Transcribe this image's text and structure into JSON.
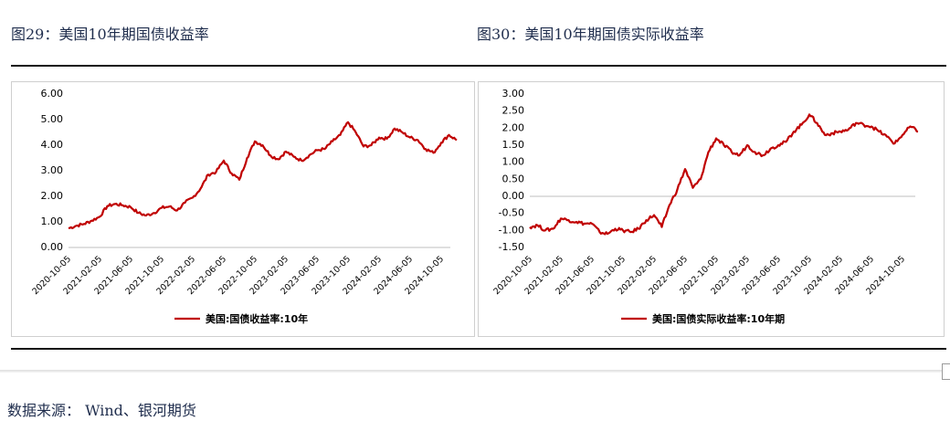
{
  "figures": {
    "left_title": "图29：美国10年期国债收益率",
    "right_title": "图30：美国10年期国债实际收益率"
  },
  "source_text": "数据来源：   Wind、银河期货",
  "chart_data": [
    {
      "type": "line",
      "title": "",
      "xlabel": "",
      "ylabel": "",
      "x_ticks": [
        "2020-10-05",
        "2021-02-05",
        "2021-06-05",
        "2021-10-05",
        "2022-02-05",
        "2022-06-05",
        "2022-10-05",
        "2023-02-05",
        "2023-06-05",
        "2023-10-05",
        "2024-02-05",
        "2024-06-05",
        "2024-10-05"
      ],
      "y_ticks": [
        "0.00",
        "1.00",
        "2.00",
        "3.00",
        "4.00",
        "5.00",
        "6.00"
      ],
      "ylim": [
        0,
        6
      ],
      "grid": false,
      "legend": "bottom-center",
      "color": "#c00000",
      "series": [
        {
          "name": "美国:国债收益率:10年",
          "x": [
            "2020-10-05",
            "2020-11-05",
            "2020-12-05",
            "2021-01-05",
            "2021-02-05",
            "2021-03-05",
            "2021-04-05",
            "2021-05-05",
            "2021-06-05",
            "2021-07-05",
            "2021-08-05",
            "2021-09-05",
            "2021-10-05",
            "2021-11-05",
            "2021-12-05",
            "2022-01-05",
            "2022-02-05",
            "2022-03-05",
            "2022-04-05",
            "2022-05-05",
            "2022-06-05",
            "2022-07-05",
            "2022-08-05",
            "2022-09-05",
            "2022-10-05",
            "2022-11-05",
            "2022-12-05",
            "2023-01-05",
            "2023-02-05",
            "2023-03-05",
            "2023-04-05",
            "2023-05-05",
            "2023-06-05",
            "2023-07-05",
            "2023-08-05",
            "2023-09-05",
            "2023-10-05",
            "2023-11-05",
            "2023-12-05",
            "2024-01-05",
            "2024-02-05",
            "2024-03-05",
            "2024-04-05",
            "2024-05-05",
            "2024-06-05",
            "2024-07-05",
            "2024-08-05",
            "2024-09-05",
            "2024-10-05",
            "2024-11-05",
            "2024-12-05"
          ],
          "values": [
            0.75,
            0.85,
            0.92,
            1.05,
            1.2,
            1.62,
            1.7,
            1.65,
            1.58,
            1.35,
            1.25,
            1.35,
            1.55,
            1.6,
            1.45,
            1.75,
            1.95,
            2.3,
            2.85,
            2.95,
            3.4,
            2.9,
            2.65,
            3.5,
            4.15,
            4.0,
            3.6,
            3.45,
            3.75,
            3.55,
            3.4,
            3.6,
            3.8,
            3.85,
            4.15,
            4.4,
            4.9,
            4.5,
            3.95,
            4.0,
            4.3,
            4.25,
            4.65,
            4.5,
            4.3,
            4.2,
            3.85,
            3.7,
            4.1,
            4.4,
            4.2
          ]
        }
      ]
    },
    {
      "type": "line",
      "title": "",
      "xlabel": "",
      "ylabel": "",
      "x_ticks": [
        "2020-10-05",
        "2021-02-05",
        "2021-06-05",
        "2021-10-05",
        "2022-02-05",
        "2022-06-05",
        "2022-10-05",
        "2023-02-05",
        "2023-06-05",
        "2023-10-05",
        "2024-02-05",
        "2024-06-05",
        "2024-10-05"
      ],
      "y_ticks": [
        "-1.50",
        "-1.00",
        "-0.50",
        "0.00",
        "0.50",
        "1.00",
        "1.50",
        "2.00",
        "2.50",
        "3.00"
      ],
      "ylim": [
        -1.5,
        3
      ],
      "grid": false,
      "legend": "bottom-center",
      "color": "#c00000",
      "series": [
        {
          "name": "美国:国债实际收益率:10年期",
          "x": [
            "2020-10-05",
            "2020-11-05",
            "2020-12-05",
            "2021-01-05",
            "2021-02-05",
            "2021-03-05",
            "2021-04-05",
            "2021-05-05",
            "2021-06-05",
            "2021-07-05",
            "2021-08-05",
            "2021-09-05",
            "2021-10-05",
            "2021-11-05",
            "2021-12-05",
            "2022-01-05",
            "2022-02-05",
            "2022-03-05",
            "2022-04-05",
            "2022-05-05",
            "2022-06-05",
            "2022-07-05",
            "2022-08-05",
            "2022-09-05",
            "2022-10-05",
            "2022-11-05",
            "2022-12-05",
            "2023-01-05",
            "2023-02-05",
            "2023-03-05",
            "2023-04-05",
            "2023-05-05",
            "2023-06-05",
            "2023-07-05",
            "2023-08-05",
            "2023-09-05",
            "2023-10-05",
            "2023-11-05",
            "2023-12-05",
            "2024-01-05",
            "2024-02-05",
            "2024-03-05",
            "2024-04-05",
            "2024-05-05",
            "2024-06-05",
            "2024-07-05",
            "2024-08-05",
            "2024-09-05",
            "2024-10-05",
            "2024-11-05",
            "2024-12-05"
          ],
          "values": [
            -0.9,
            -0.85,
            -1.0,
            -0.95,
            -0.65,
            -0.7,
            -0.75,
            -0.8,
            -0.8,
            -1.05,
            -1.1,
            -0.95,
            -1.0,
            -1.05,
            -0.95,
            -0.7,
            -0.55,
            -0.9,
            -0.25,
            0.2,
            0.8,
            0.25,
            0.5,
            1.3,
            1.7,
            1.5,
            1.3,
            1.2,
            1.5,
            1.3,
            1.2,
            1.4,
            1.5,
            1.6,
            1.9,
            2.1,
            2.4,
            2.15,
            1.8,
            1.85,
            1.9,
            1.95,
            2.15,
            2.1,
            2.05,
            1.9,
            1.75,
            1.55,
            1.8,
            2.05,
            1.9
          ]
        }
      ]
    }
  ]
}
